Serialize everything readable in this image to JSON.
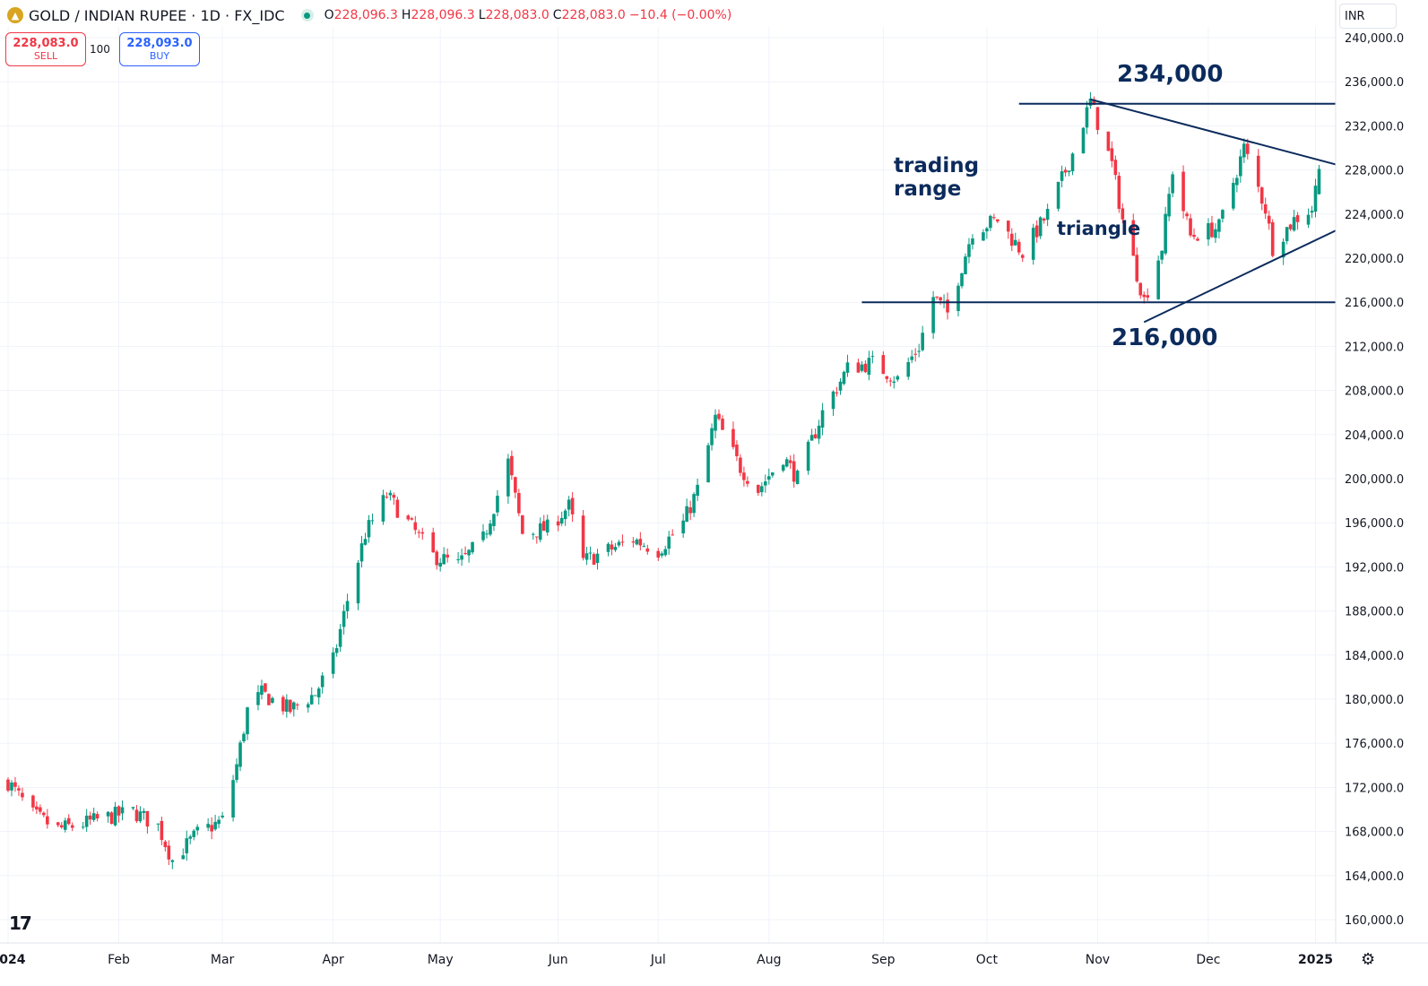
{
  "legend": {
    "symbol": "GOLD / INDIAN RUPEE · 1D · FX_IDC",
    "o_label": "O",
    "o_value": "228,096.3",
    "h_label": "H",
    "h_value": "228,096.3",
    "l_label": "L",
    "l_value": "228,083.0",
    "c_label": "C",
    "c_value": "228,083.0",
    "change": "−10.4 (−0.00%)"
  },
  "trade": {
    "sell_price": "228,083.0",
    "sell_label": "SELL",
    "quantity": "100",
    "buy_price": "228,093.0",
    "buy_label": "BUY"
  },
  "currency": "INR",
  "colors": {
    "up": "#089981",
    "down": "#f23645",
    "annotation": "#0c2b5c",
    "grid": "#f0f3fa"
  },
  "icons": {
    "logo": "tradingview-logo",
    "settings": "gear-icon",
    "symbol": "gold-coin-icon"
  },
  "chart_data": {
    "type": "candlestick",
    "y_axis": {
      "ylim": [
        159000,
        241000
      ],
      "ticks": [
        "160,000.0",
        "164,000.0",
        "168,000.0",
        "172,000.0",
        "176,000.0",
        "180,000.0",
        "184,000.0",
        "188,000.0",
        "192,000.0",
        "196,000.0",
        "200,000.0",
        "204,000.0",
        "208,000.0",
        "212,000.0",
        "216,000.0",
        "220,000.0",
        "224,000.0",
        "228,000.0",
        "232,000.0",
        "236,000.0",
        "240,000.0"
      ],
      "tick_values": [
        160000,
        164000,
        168000,
        172000,
        176000,
        180000,
        184000,
        188000,
        192000,
        196000,
        200000,
        204000,
        208000,
        212000,
        216000,
        220000,
        224000,
        228000,
        232000,
        236000,
        240000
      ]
    },
    "x_axis": {
      "labels": [
        "2024",
        "Feb",
        "Mar",
        "Apr",
        "May",
        "Jun",
        "Jul",
        "Aug",
        "Sep",
        "Oct",
        "Nov",
        "Dec",
        "2025"
      ],
      "label_dates": [
        "2024-01-01",
        "2024-02-01",
        "2024-03-01",
        "2024-04-01",
        "2024-05-01",
        "2024-06-03",
        "2024-07-01",
        "2024-08-01",
        "2024-09-02",
        "2024-10-01",
        "2024-11-01",
        "2024-12-02",
        "2025-01-01"
      ]
    },
    "waypoints": [
      [
        "2024-01-01",
        172500
      ],
      [
        "2024-01-08",
        169500
      ],
      [
        "2024-01-15",
        168200
      ],
      [
        "2024-01-22",
        168700
      ],
      [
        "2024-01-29",
        169300
      ],
      [
        "2024-02-05",
        169800
      ],
      [
        "2024-02-12",
        168500
      ],
      [
        "2024-02-16",
        165400
      ],
      [
        "2024-02-23",
        167800
      ],
      [
        "2024-03-01",
        169000
      ],
      [
        "2024-03-05",
        174000
      ],
      [
        "2024-03-08",
        179000
      ],
      [
        "2024-03-12",
        180500
      ],
      [
        "2024-03-20",
        179000
      ],
      [
        "2024-03-27",
        180500
      ],
      [
        "2024-04-01",
        183500
      ],
      [
        "2024-04-05",
        189000
      ],
      [
        "2024-04-10",
        195000
      ],
      [
        "2024-04-16",
        198500
      ],
      [
        "2024-04-22",
        196000
      ],
      [
        "2024-04-29",
        193000
      ],
      [
        "2024-05-06",
        192200
      ],
      [
        "2024-05-13",
        194500
      ],
      [
        "2024-05-17",
        198500
      ],
      [
        "2024-05-20",
        201500
      ],
      [
        "2024-05-24",
        195000
      ],
      [
        "2024-05-31",
        195500
      ],
      [
        "2024-06-06",
        197500
      ],
      [
        "2024-06-10",
        192500
      ],
      [
        "2024-06-17",
        193500
      ],
      [
        "2024-06-24",
        194500
      ],
      [
        "2024-07-01",
        193500
      ],
      [
        "2024-07-08",
        196000
      ],
      [
        "2024-07-12",
        199000
      ],
      [
        "2024-07-17",
        205500
      ],
      [
        "2024-07-24",
        201000
      ],
      [
        "2024-07-29",
        199000
      ],
      [
        "2024-08-05",
        202000
      ],
      [
        "2024-08-09",
        200000
      ],
      [
        "2024-08-16",
        206000
      ],
      [
        "2024-08-23",
        210000
      ],
      [
        "2024-08-30",
        210500
      ],
      [
        "2024-09-06",
        209000
      ],
      [
        "2024-09-12",
        212000
      ],
      [
        "2024-09-16",
        216500
      ],
      [
        "2024-09-20",
        215000
      ],
      [
        "2024-09-27",
        222500
      ],
      [
        "2024-10-04",
        223500
      ],
      [
        "2024-10-11",
        220500
      ],
      [
        "2024-10-18",
        224000
      ],
      [
        "2024-10-25",
        229500
      ],
      [
        "2024-10-30",
        234200
      ],
      [
        "2024-11-05",
        228500
      ],
      [
        "2024-11-08",
        223500
      ],
      [
        "2024-11-14",
        216200
      ],
      [
        "2024-11-19",
        221000
      ],
      [
        "2024-11-22",
        228000
      ],
      [
        "2024-11-27",
        222000
      ],
      [
        "2024-12-05",
        222800
      ],
      [
        "2024-12-12",
        230000
      ],
      [
        "2024-12-18",
        224500
      ],
      [
        "2024-12-20",
        221000
      ],
      [
        "2024-12-26",
        223500
      ],
      [
        "2024-12-31",
        224500
      ],
      [
        "2025-01-02",
        228090
      ]
    ],
    "annotations": [
      {
        "text": "234,000",
        "value": 234000
      },
      {
        "text": "216,000",
        "value": 216000
      },
      {
        "text_lines": [
          "trading",
          "range"
        ]
      },
      {
        "text": "triangle"
      }
    ]
  }
}
